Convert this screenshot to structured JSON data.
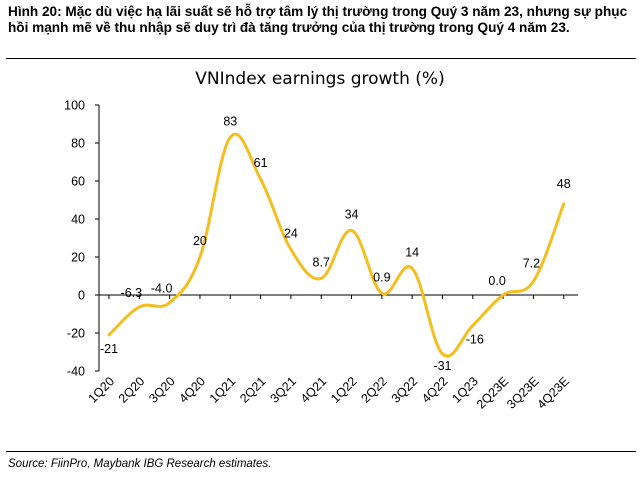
{
  "caption": "Hình 20: Mặc dù việc hạ lãi suất sẽ hỗ trợ tâm lý thị trường trong Quý 3 năm 23, nhưng sự phục hồi mạnh mẽ về thu nhập sẽ duy trì đà tăng trưởng của thị trường trong Quý 4 năm 23.",
  "source": "Source: FiinPro, Maybank IBG Research estimates.",
  "colors": {
    "line": "#F5BE1E",
    "axis": "#000000"
  },
  "chart_data": {
    "type": "line",
    "title": "VNIndex earnings growth (%)",
    "xlabel": "",
    "ylabel": "",
    "ylim": [
      -40,
      100
    ],
    "yticks": [
      100,
      80,
      60,
      40,
      20,
      0,
      -20,
      -40
    ],
    "ytick_labels": [
      "100",
      "80",
      "60",
      "40",
      "20",
      "0",
      "-20",
      "-40"
    ],
    "grid": false,
    "legend": "none",
    "categories": [
      "1Q20",
      "2Q20",
      "3Q20",
      "4Q20",
      "1Q21",
      "2Q21",
      "3Q21",
      "4Q21",
      "1Q22",
      "2Q22",
      "3Q22",
      "4Q22",
      "1Q23",
      "2Q23E",
      "3Q23E",
      "4Q23E"
    ],
    "values": [
      -21,
      -6.3,
      -4.0,
      20,
      83,
      61,
      24,
      8.7,
      34,
      0.9,
      14,
      -31,
      -16,
      0.0,
      7.2,
      48
    ],
    "value_labels": [
      "-21",
      "-6.3",
      "-4.0",
      "20",
      "83",
      "61",
      "24",
      "8.7",
      "34",
      "0.9",
      "14",
      "-31",
      "-16",
      "0.0",
      "7.2",
      "48"
    ]
  }
}
